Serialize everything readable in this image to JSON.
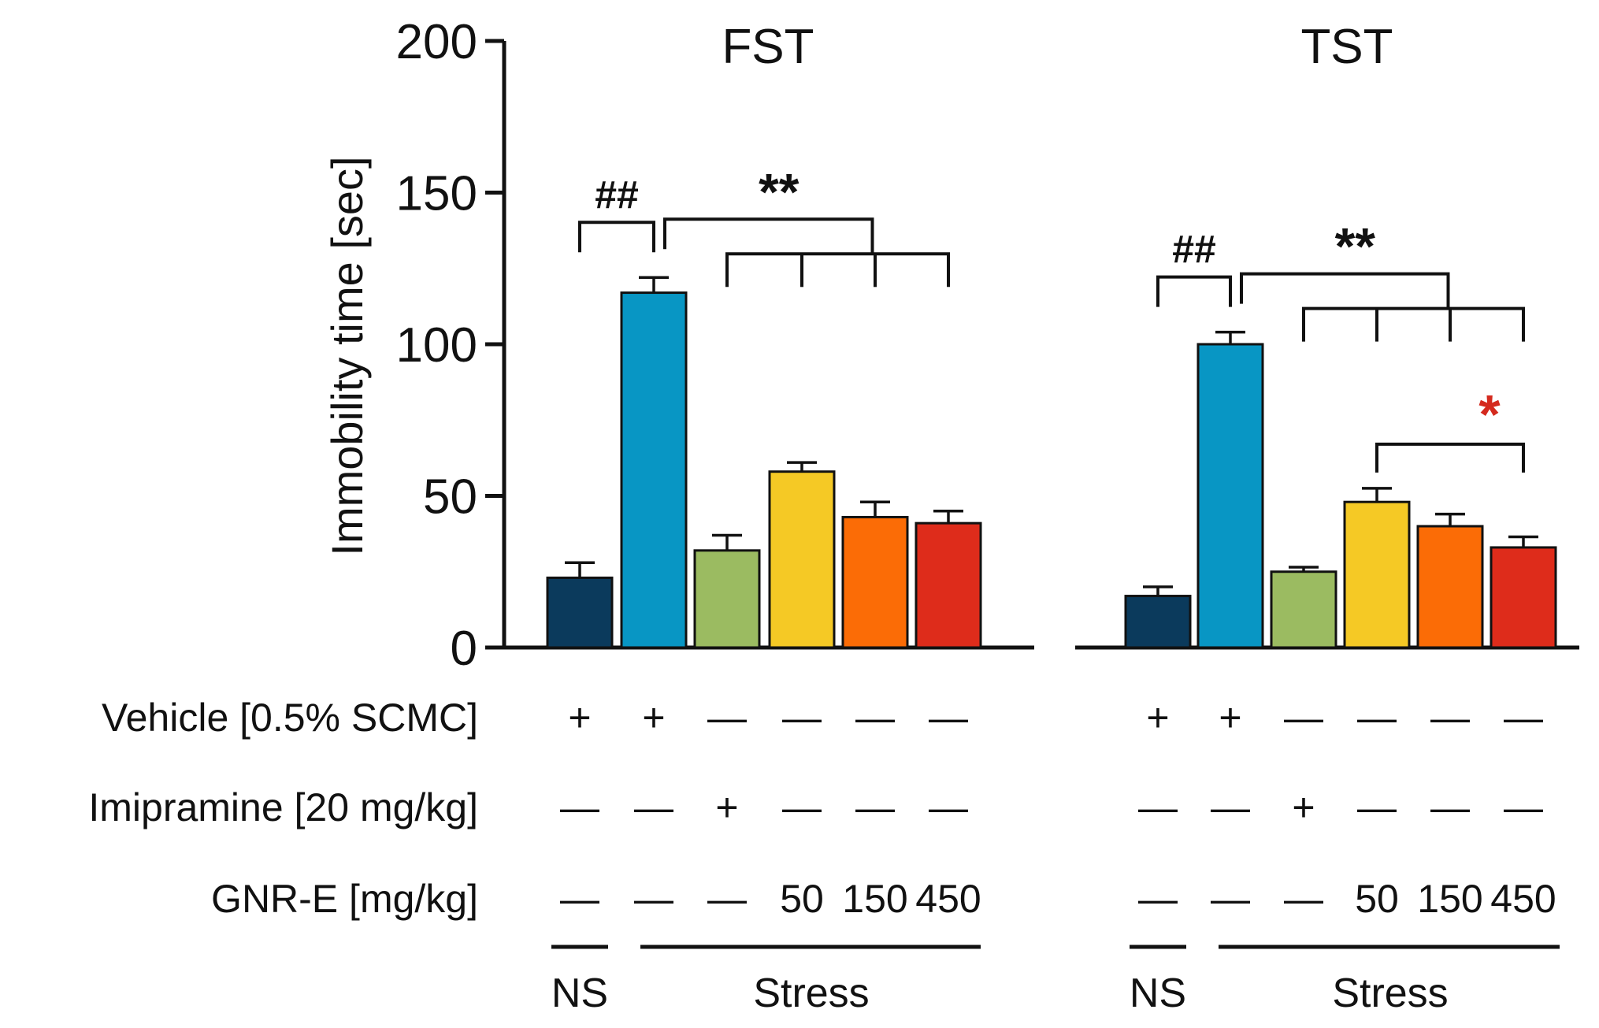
{
  "chart_data": {
    "type": "bar",
    "ylabel": "Immobility time [sec]",
    "ylim": [
      0,
      200
    ],
    "yticks": [
      0,
      50,
      100,
      150,
      200
    ],
    "colors": [
      "#0b3a5c",
      "#0896c4",
      "#9bbb61",
      "#f5c925",
      "#fb6c06",
      "#de2c1b"
    ],
    "panels": [
      {
        "title": "FST",
        "values": [
          23,
          117,
          32,
          58,
          43,
          41
        ],
        "errors": [
          5,
          5,
          5,
          3,
          5,
          4
        ],
        "sig_control": "##",
        "sig_treatment": "**",
        "sig_extra": ""
      },
      {
        "title": "TST",
        "values": [
          17,
          100,
          25,
          48,
          40,
          33
        ],
        "errors": [
          3,
          4,
          1.5,
          4.5,
          4,
          3.5
        ],
        "sig_control": "##",
        "sig_treatment": "**",
        "sig_extra": "*",
        "sig_extra_color": "#d42a1e"
      }
    ],
    "rows": [
      {
        "label": "Vehicle [0.5% SCMC]",
        "cells": [
          "+",
          "+",
          "—",
          "—",
          "—",
          "—"
        ]
      },
      {
        "label": "Imipramine [20 mg/kg]",
        "cells": [
          "—",
          "—",
          "+",
          "—",
          "—",
          "—"
        ]
      },
      {
        "label": "GNR-E [mg/kg]",
        "cells": [
          "—",
          "—",
          "—",
          "50",
          "150",
          "450"
        ]
      }
    ],
    "groups": [
      "NS",
      "Stress"
    ]
  }
}
